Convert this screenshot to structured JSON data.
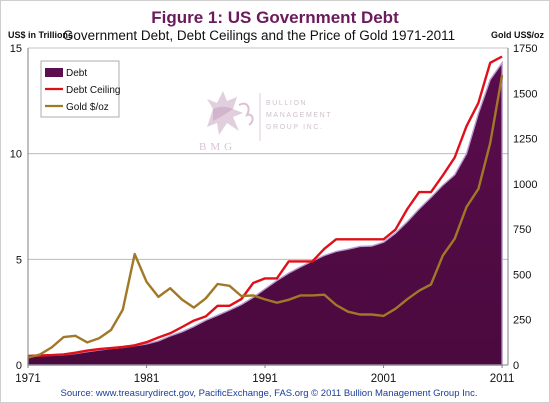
{
  "chart_data": {
    "type": "area+line",
    "title": "Figure 1: US Government Debt",
    "subtitle": "Government Debt, Debt Ceilings and the Price of Gold 1971-2011",
    "y_left_unit": "US$ in Trillions",
    "y_right_unit": "Gold US$/oz",
    "x_ticks": [
      "1971",
      "1981",
      "1991",
      "2001",
      "2011"
    ],
    "y_left_ticks": [
      "0",
      "5",
      "10",
      "15"
    ],
    "y_right_ticks": [
      "0",
      "250",
      "500",
      "750",
      "1000",
      "1250",
      "1500",
      "1750"
    ],
    "y_left_lim": [
      0,
      15
    ],
    "y_right_lim": [
      0,
      1750
    ],
    "x_lim": [
      1971,
      2011.5
    ],
    "grid": "horizontal",
    "legend_position": "top-left",
    "colors": {
      "debt": "#5c0f4e",
      "debt_ceiling": "#e0101a",
      "gold": "#a07828",
      "grid": "#b0b0b0"
    },
    "series": [
      {
        "name": "Debt",
        "kind": "area",
        "axis": "left",
        "x": [
          1971,
          1972,
          1973,
          1974,
          1975,
          1976,
          1977,
          1978,
          1979,
          1980,
          1981,
          1982,
          1983,
          1984,
          1985,
          1986,
          1987,
          1988,
          1989,
          1990,
          1991,
          1992,
          1993,
          1994,
          1995,
          1996,
          1997,
          1998,
          1999,
          2000,
          2001,
          2002,
          2003,
          2004,
          2005,
          2006,
          2007,
          2008,
          2009,
          2010,
          2011
        ],
        "values": [
          0.4,
          0.43,
          0.46,
          0.48,
          0.54,
          0.63,
          0.71,
          0.78,
          0.83,
          0.91,
          1.0,
          1.14,
          1.37,
          1.57,
          1.82,
          2.12,
          2.35,
          2.6,
          2.86,
          3.2,
          3.6,
          4.0,
          4.35,
          4.64,
          4.92,
          5.18,
          5.37,
          5.48,
          5.61,
          5.63,
          5.81,
          6.23,
          6.78,
          7.38,
          7.93,
          8.51,
          9.0,
          10.0,
          11.9,
          13.5,
          14.3
        ]
      },
      {
        "name": "Debt Ceiling",
        "kind": "line",
        "axis": "left",
        "x": [
          1971,
          1972,
          1973,
          1974,
          1975,
          1976,
          1977,
          1978,
          1979,
          1980,
          1981,
          1982,
          1983,
          1984,
          1985,
          1986,
          1987,
          1988,
          1989,
          1990,
          1991,
          1992,
          1993,
          1994,
          1995,
          1996,
          1997,
          1998,
          1999,
          2000,
          2001,
          2002,
          2003,
          2004,
          2005,
          2006,
          2007,
          2008,
          2009,
          2010,
          2011
        ],
        "values": [
          0.43,
          0.45,
          0.47,
          0.5,
          0.58,
          0.68,
          0.75,
          0.8,
          0.85,
          0.93,
          1.08,
          1.3,
          1.5,
          1.8,
          2.1,
          2.3,
          2.8,
          2.8,
          3.12,
          3.88,
          4.1,
          4.1,
          4.9,
          4.9,
          4.9,
          5.5,
          5.95,
          5.95,
          5.95,
          5.95,
          5.95,
          6.4,
          7.38,
          8.18,
          8.18,
          8.97,
          9.82,
          11.3,
          12.4,
          14.3,
          14.6
        ]
      },
      {
        "name": "Gold $/oz",
        "kind": "line",
        "axis": "right",
        "x": [
          1971,
          1972,
          1973,
          1974,
          1975,
          1976,
          1977,
          1978,
          1979,
          1980,
          1981,
          1982,
          1983,
          1984,
          1985,
          1986,
          1987,
          1988,
          1989,
          1990,
          1991,
          1992,
          1993,
          1994,
          1995,
          1996,
          1997,
          1998,
          1999,
          2000,
          2001,
          2002,
          2003,
          2004,
          2005,
          2006,
          2007,
          2008,
          2009,
          2010,
          2011
        ],
        "values": [
          41,
          58,
          97,
          154,
          161,
          125,
          148,
          193,
          306,
          612,
          460,
          376,
          424,
          361,
          317,
          368,
          447,
          437,
          381,
          384,
          362,
          344,
          360,
          384,
          384,
          388,
          331,
          294,
          279,
          279,
          271,
          310,
          363,
          410,
          445,
          604,
          697,
          872,
          972,
          1225,
          1600
        ]
      }
    ],
    "logo": {
      "initials": "BMG",
      "lines": [
        "BULLION",
        "MANAGEMENT",
        "GROUP INC."
      ]
    },
    "source": "Source: www.treasurydirect.gov, PacificExchange, FAS.org  © 2011 Bullion Management Group Inc."
  }
}
